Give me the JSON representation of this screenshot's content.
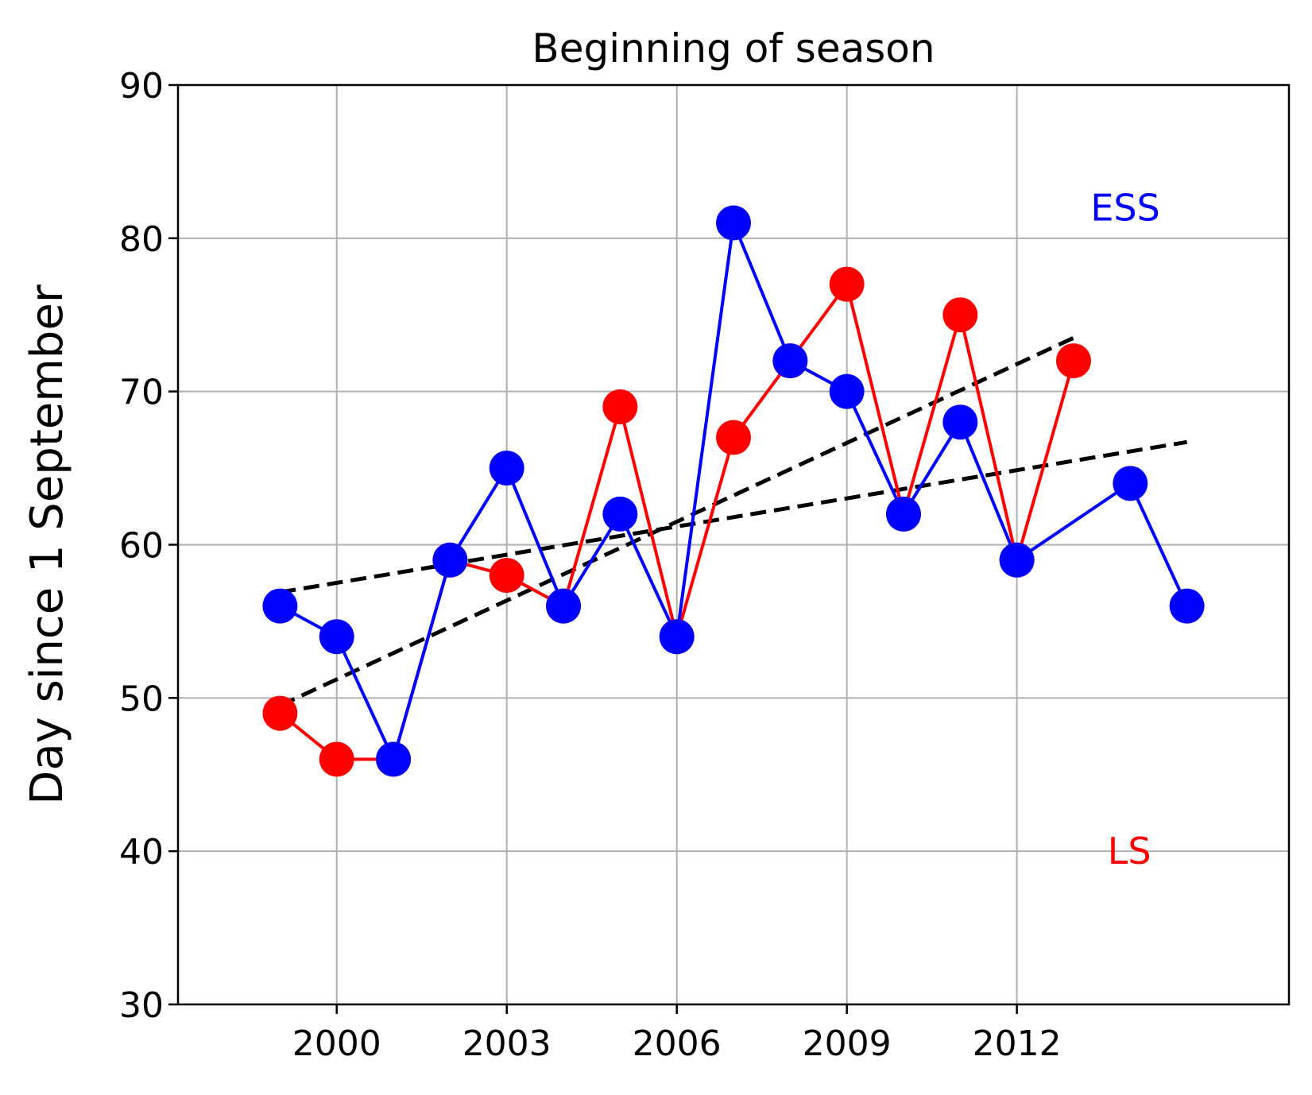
{
  "chart_data": {
    "type": "line",
    "title": "Beginning of season",
    "xlabel": "",
    "ylabel": "Day since 1 September",
    "xlim": [
      1997.2,
      2016.8
    ],
    "ylim": [
      30,
      90
    ],
    "x_ticks": [
      2000,
      2003,
      2006,
      2009,
      2012
    ],
    "y_ticks": [
      30,
      40,
      50,
      60,
      70,
      80,
      90
    ],
    "grid": true,
    "series": [
      {
        "name": "LS",
        "color": "#ff0000",
        "x": [
          1999,
          2000,
          2001,
          2002,
          2003,
          2004,
          2005,
          2006,
          2007,
          2008,
          2009,
          2010,
          2011,
          2012,
          2013
        ],
        "y": [
          49,
          46,
          46,
          59,
          58,
          56,
          69,
          54,
          67,
          72,
          77,
          62,
          75,
          59,
          72
        ]
      },
      {
        "name": "ESS",
        "color": "#0000ff",
        "x": [
          1999,
          2000,
          2001,
          2002,
          2003,
          2004,
          2005,
          2006,
          2007,
          2008,
          2009,
          2010,
          2011,
          2012,
          2014,
          2015
        ],
        "y": [
          56,
          54,
          46,
          59,
          65,
          56,
          62,
          54,
          81,
          72,
          70,
          62,
          68,
          59,
          64,
          56
        ]
      }
    ],
    "trend_lines": [
      {
        "color": "#000000",
        "x": [
          1999,
          2013
        ],
        "y": [
          49.5,
          73.5
        ]
      },
      {
        "color": "#000000",
        "x": [
          1999,
          2015
        ],
        "y": [
          56.9,
          66.7
        ]
      }
    ],
    "annotations": [
      {
        "text": "ESS",
        "color": "#0000ff",
        "x": 2013.3,
        "y": 82
      },
      {
        "text": "LS",
        "color": "#ff0000",
        "x": 2013.6,
        "y": 40
      }
    ]
  }
}
